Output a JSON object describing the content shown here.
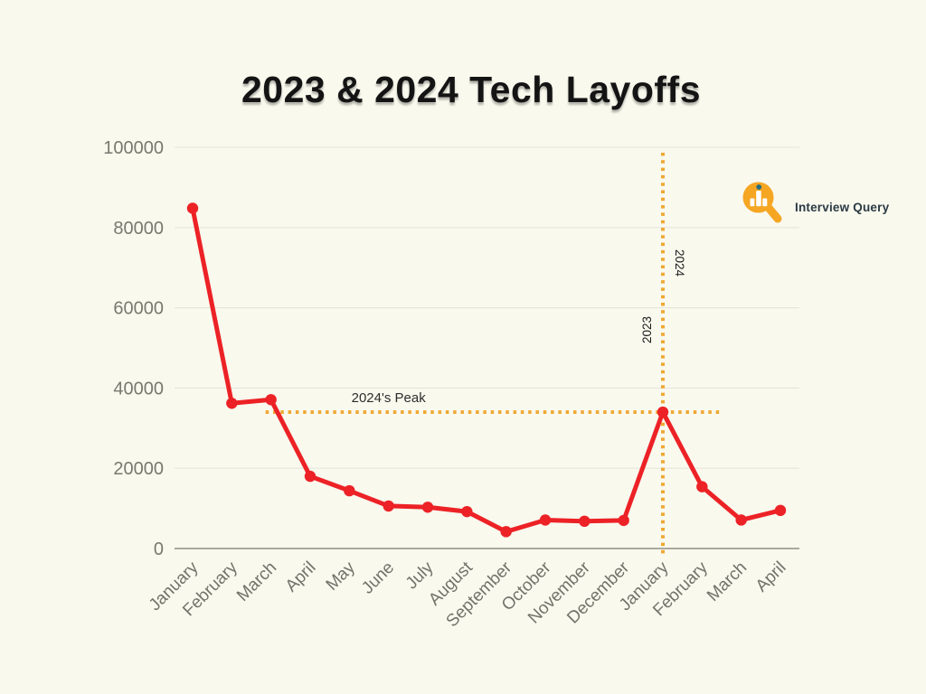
{
  "page": {
    "background_color": "#f9f9ee"
  },
  "logo": {
    "text": "Interview Query",
    "icon": "magnifier-bar-chart-icon",
    "circle_color": "#f5a623",
    "bar_color": "#ffffff",
    "dot_color": "#266e7e",
    "text_color": "#2b3a44"
  },
  "chart_data": {
    "type": "line",
    "title": "2023 & 2024 Tech Layoffs",
    "categories": [
      "January",
      "February",
      "March",
      "April",
      "May",
      "June",
      "July",
      "August",
      "September",
      "October",
      "November",
      "December",
      "January",
      "February",
      "March",
      "April"
    ],
    "values": [
      84800,
      36200,
      37100,
      18000,
      14400,
      10600,
      10300,
      9200,
      4200,
      7100,
      6800,
      7000,
      34000,
      15400,
      7100,
      9500
    ],
    "xlabel": "",
    "ylabel": "",
    "ylim": [
      0,
      100000
    ],
    "yticks": [
      0,
      20000,
      40000,
      60000,
      80000,
      100000
    ],
    "grid": true,
    "legend": "none",
    "annotations": {
      "peak_line": {
        "label": "2024's Peak",
        "value": 34000,
        "from_index": 2,
        "to_index": 13,
        "style": "dotted"
      },
      "year_divider": {
        "at_index": 12,
        "left_label": "2023",
        "right_label": "2024",
        "style": "dotted"
      }
    },
    "colors": {
      "line": "#ec2226",
      "marker": "#ec2226",
      "annotation": "#f0a733",
      "grid": "#e5e5db",
      "axis": "#8f8f86",
      "tick_text": "#78786f",
      "month_text": "#73736b",
      "annotation_text": "#2e2e2e",
      "year_text": "#1c1c1c"
    }
  }
}
